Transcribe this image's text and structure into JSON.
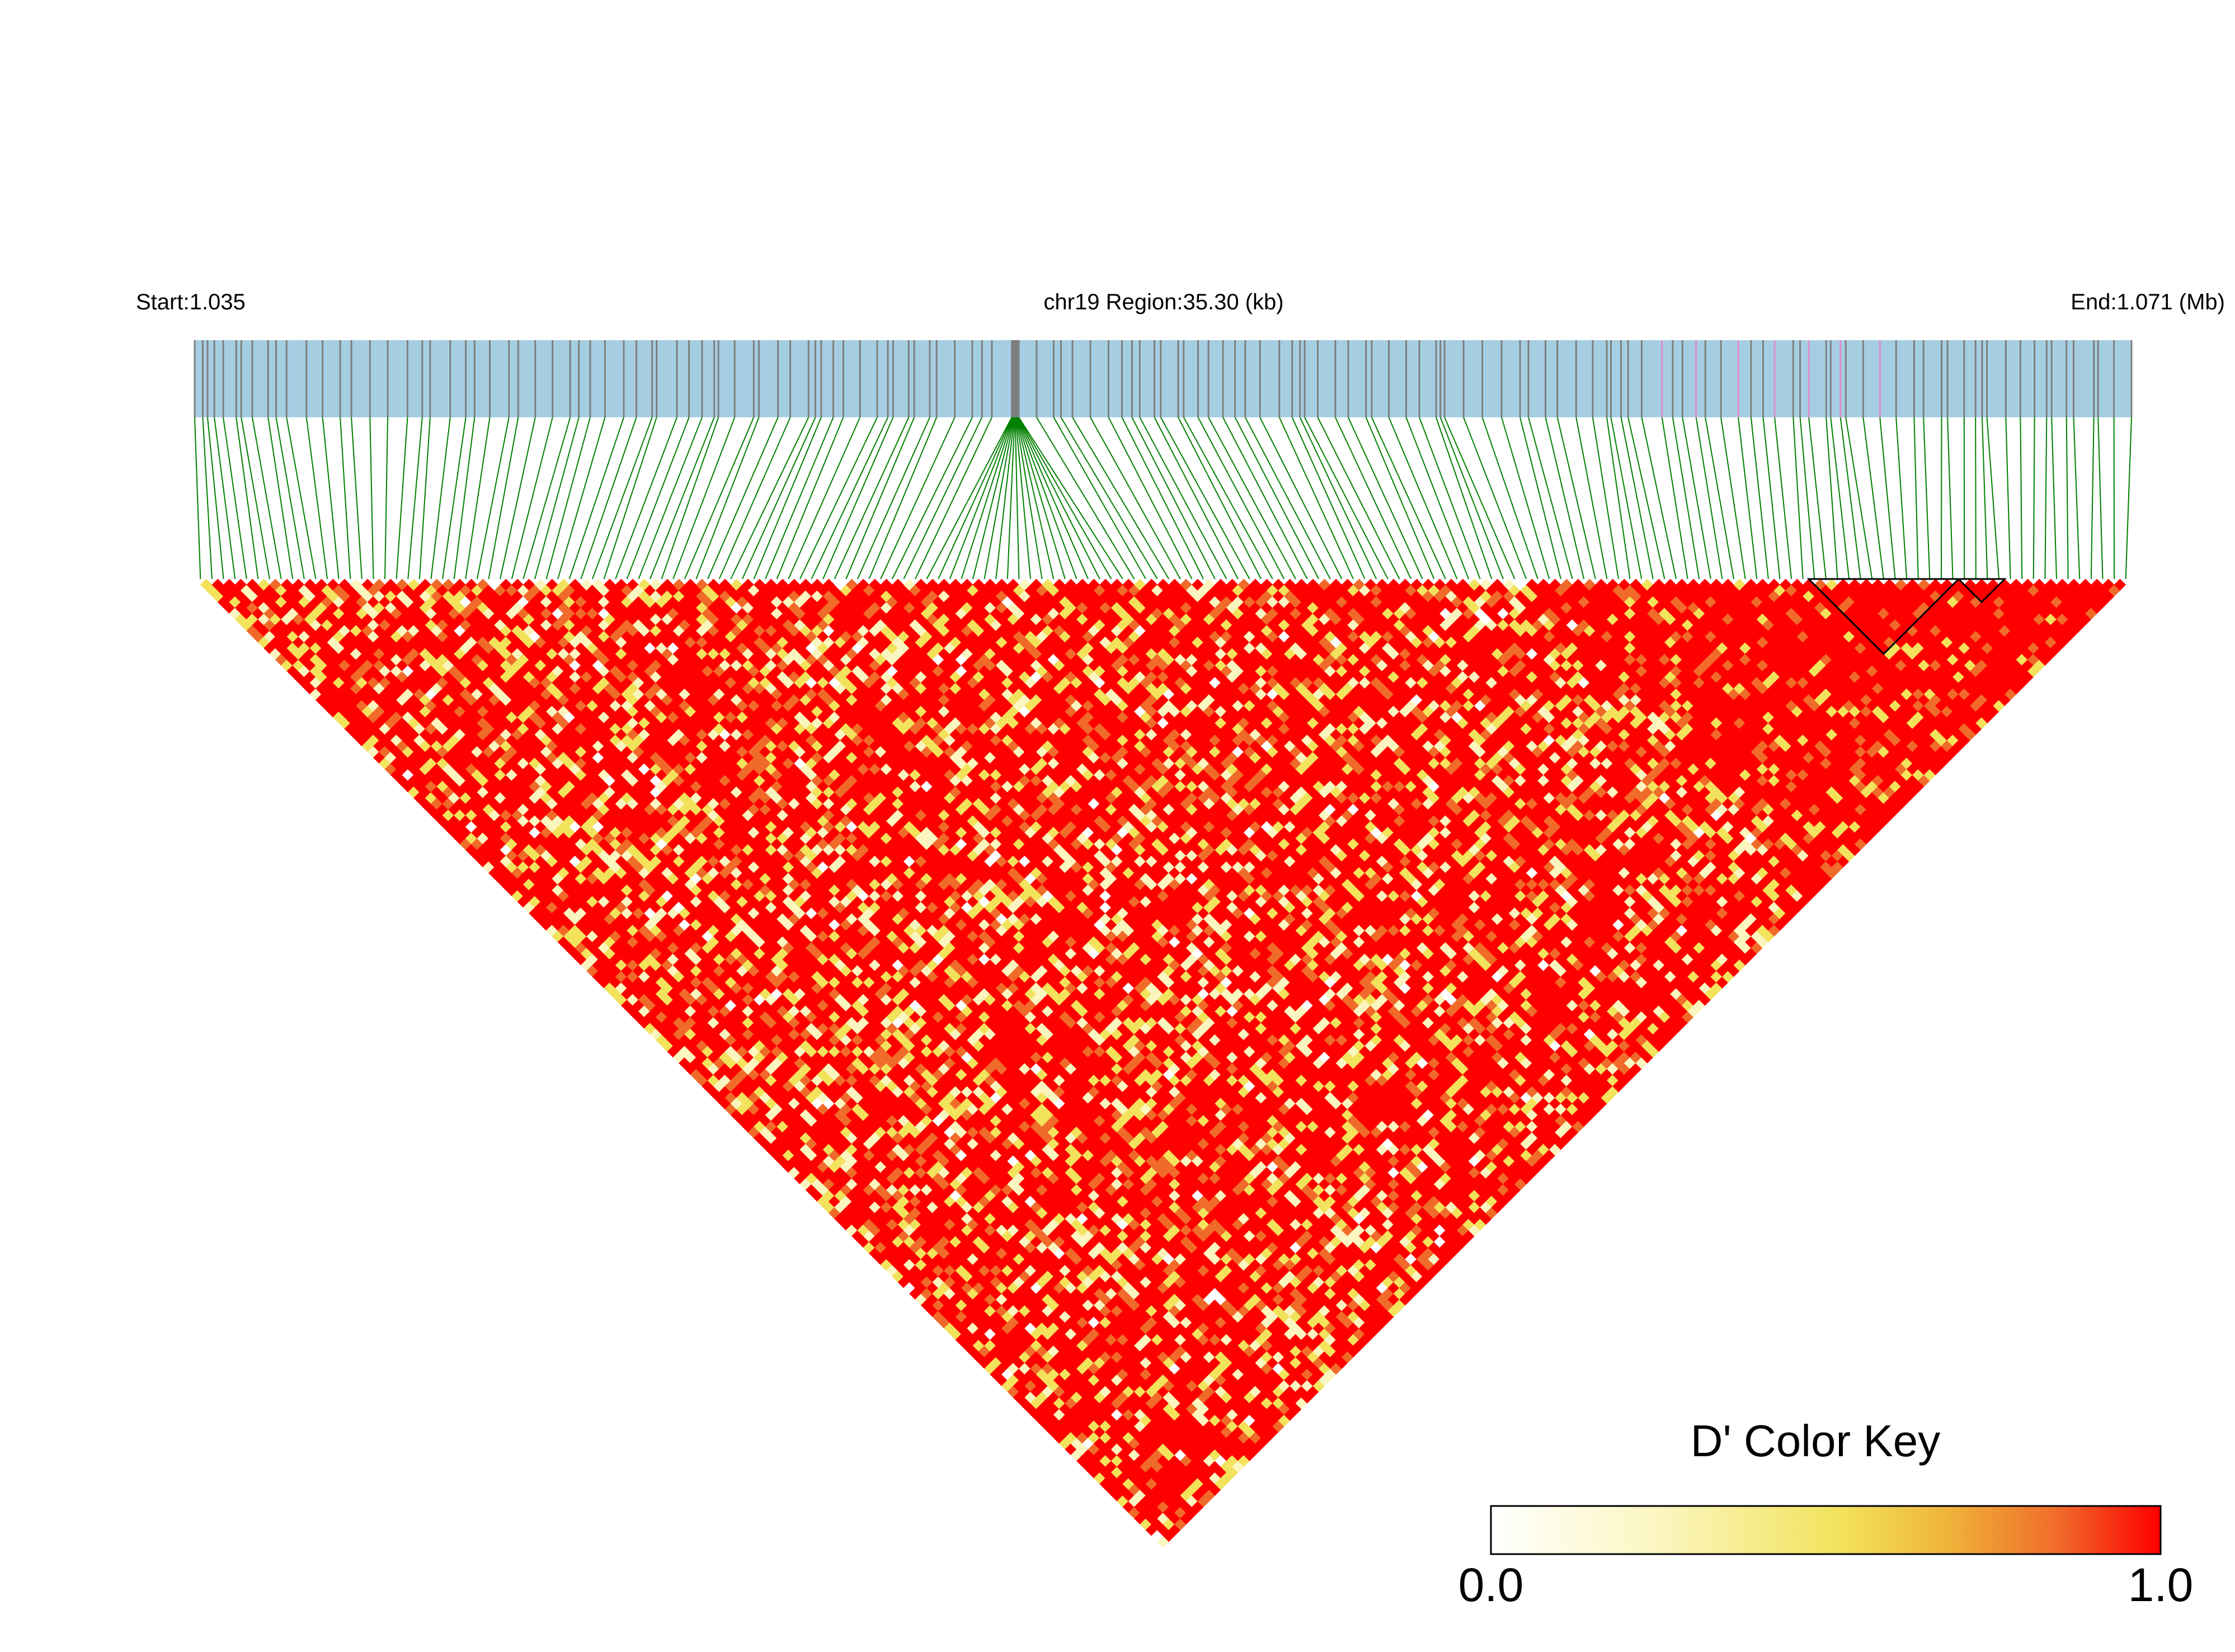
{
  "header": {
    "start_label": "Start:1.035",
    "region_label": "chr19 Region:35.30 (kb)",
    "end_label": "End:1.071 (Mb)"
  },
  "color_key": {
    "title": "D' Color Key",
    "min_label": "0.0",
    "max_label": "1.0",
    "gradient": [
      "#ffffff",
      "#fbf6c0",
      "#f2e25c",
      "#efb43a",
      "#f06a2a",
      "#ff0000"
    ]
  },
  "colors": {
    "track_background": "#a6cee3",
    "snp_tick": "#7f7f7f",
    "snp_tick_highlight": "#e08cd0",
    "connector_line": "#008000",
    "ld_high": "#ff0000",
    "ld_mid": "#f06a2a",
    "ld_low": "#f2e25c",
    "ld_very_low": "#fbf6c0",
    "ld_block_outline": "#000000"
  }
}
